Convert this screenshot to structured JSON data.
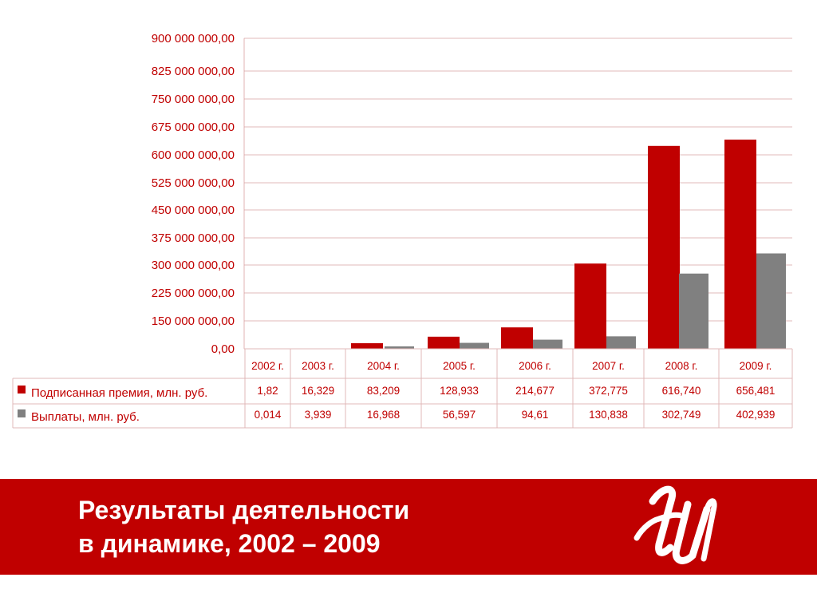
{
  "chart_data": {
    "type": "bar",
    "categories": [
      "2002 г.",
      "2003 г.",
      "2004 г.",
      "2005 г.",
      "2006 г.",
      "2007 г.",
      "2008 г.",
      "2009 г."
    ],
    "y_tick_labels": [
      "0,00",
      "150 000 000,00",
      "225 000 000,00",
      "300 000 000,00",
      "375 000 000,00",
      "450 000 000,00",
      "525 000 000,00",
      "600 000 000,00",
      "675 000 000,00",
      "750 000 000,00",
      "825 000 000,00",
      "900 000 000,00"
    ],
    "y_tick_values": [
      0,
      150000000,
      225000000,
      300000000,
      375000000,
      450000000,
      525000000,
      600000000,
      675000000,
      750000000,
      825000000,
      900000000
    ],
    "ylim": [
      0,
      900000000
    ],
    "grid": true,
    "legend": "data-table-left",
    "series": [
      {
        "name": "Подписанная премия, млн. руб.",
        "color": "#c00000",
        "labels": [
          "1,82",
          "16,329",
          "83,209",
          "128,933",
          "214,677",
          "372,775",
          "616,740",
          "656,481"
        ],
        "values": [
          1.82,
          16.329,
          83.209,
          128.933,
          214.677,
          372.775,
          616.74,
          656.481
        ],
        "bar_height_units": [
          0,
          0,
          30000000,
          65000000,
          115000000,
          304000000,
          624000000,
          641000000
        ]
      },
      {
        "name": "Выплаты, млн. руб.",
        "color": "#808080",
        "labels": [
          "0,014",
          "3,939",
          "16,968",
          "56,597",
          "94,61",
          "130,838",
          "302,749",
          "402,939"
        ],
        "values": [
          0.014,
          3.939,
          16.968,
          56.597,
          94.61,
          130.838,
          302.749,
          402.939
        ],
        "bar_height_units": [
          0,
          0,
          13000000,
          32000000,
          49000000,
          67000000,
          277000000,
          332000000
        ]
      }
    ]
  },
  "footer": {
    "title_line1": "Результаты деятельности",
    "title_line2": "в динамике, 2002 – 2009",
    "color": "#c00000",
    "logo_icon": "ingo-monogram-logo"
  }
}
